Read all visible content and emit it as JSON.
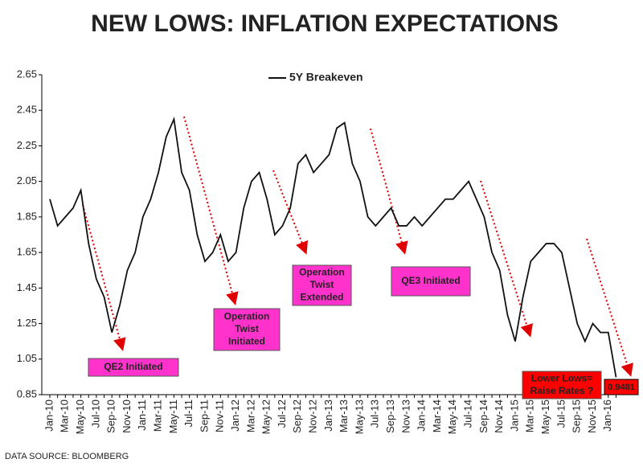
{
  "chart_data": {
    "type": "line",
    "title": "NEW LOWS: INFLATION EXPECTATIONS",
    "source": "DATA SOURCE: BLOOMBERG",
    "categories": [
      "Jan-10",
      null,
      "Mar-10",
      null,
      "May-10",
      null,
      "Jul-10",
      null,
      "Sep-10",
      null,
      "Nov-10",
      null,
      "Jan-11",
      null,
      "Mar-11",
      null,
      "May-11",
      null,
      "Jul-11",
      null,
      "Sep-11",
      null,
      "Nov-11",
      null,
      "Jan-12",
      null,
      "Mar-12",
      null,
      "May-12",
      null,
      "Jul-12",
      null,
      "Sep-12",
      null,
      "Nov-12",
      null,
      "Jan-13",
      null,
      "Mar-13",
      null,
      "May-13",
      null,
      "Jul-13",
      null,
      "Sep-13",
      null,
      "Nov-13",
      null,
      "Jan-14",
      null,
      "Mar-14",
      null,
      "May-14",
      null,
      "Jul-14",
      null,
      "Sep-14",
      null,
      "Nov-14",
      null,
      "Jan-15",
      null,
      "Mar-15",
      null,
      "May-15",
      null,
      "Jul-15",
      null,
      "Sep-15",
      null,
      "Nov-15",
      null,
      "Jan-16",
      null
    ],
    "series": [
      {
        "name": "5Y Breakeven",
        "color": "#111111",
        "values": [
          1.95,
          1.8,
          1.85,
          1.9,
          2.0,
          1.7,
          1.5,
          1.4,
          1.2,
          1.35,
          1.55,
          1.65,
          1.85,
          1.95,
          2.1,
          2.3,
          2.4,
          2.1,
          2.0,
          1.75,
          1.6,
          1.65,
          1.75,
          1.6,
          1.65,
          1.9,
          2.05,
          2.1,
          1.95,
          1.75,
          1.8,
          1.9,
          2.15,
          2.2,
          2.1,
          2.15,
          2.2,
          2.35,
          2.38,
          2.15,
          2.05,
          1.85,
          1.8,
          1.85,
          1.9,
          1.8,
          1.8,
          1.85,
          1.8,
          1.85,
          1.9,
          1.95,
          1.95,
          2.0,
          2.05,
          1.95,
          1.85,
          1.65,
          1.55,
          1.3,
          1.15,
          1.4,
          1.6,
          1.65,
          1.7,
          1.7,
          1.65,
          1.45,
          1.25,
          1.15,
          1.25,
          1.2,
          1.2,
          0.9481
        ]
      }
    ],
    "ylim": [
      0.85,
      2.65
    ],
    "yticks": [
      0.85,
      1.05,
      1.25,
      1.45,
      1.65,
      1.85,
      2.05,
      2.25,
      2.45,
      2.65
    ],
    "grid": false,
    "annotations": [
      {
        "lines": [
          "QE2 Initiated"
        ],
        "color": "#ff33cc"
      },
      {
        "lines": [
          "Operation",
          "Twist",
          "Initiated"
        ],
        "color": "#ff33cc"
      },
      {
        "lines": [
          "Operation",
          "Twist",
          "Extended"
        ],
        "color": "#ff33cc"
      },
      {
        "lines": [
          "QE3 Initiated"
        ],
        "color": "#ff33cc"
      },
      {
        "lines": [
          "Lower Lows=",
          "Raise Rates ?"
        ],
        "color": "#ff0000"
      }
    ]
  }
}
